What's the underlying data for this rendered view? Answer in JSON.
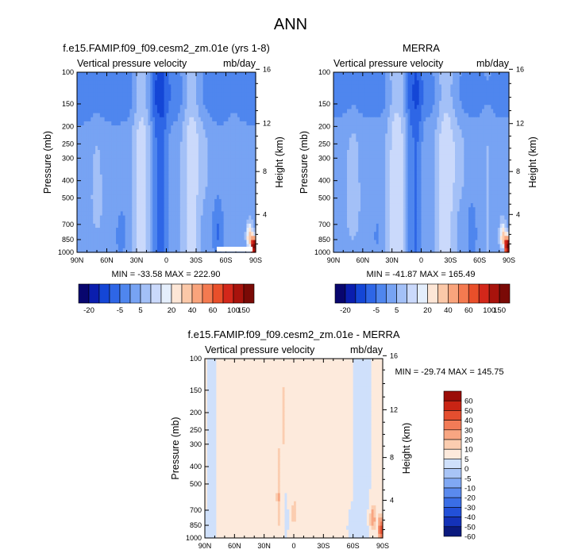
{
  "figure_title": "ANN",
  "colors": {
    "abs_palette": [
      "#08066e",
      "#0a1eae",
      "#1446d6",
      "#2e66e6",
      "#4f86ee",
      "#77a3f3",
      "#a3c0f7",
      "#cad9fb",
      "#e4eefc",
      "#fde6d6",
      "#fbc8a8",
      "#f9a47c",
      "#f47a50",
      "#e94f2a",
      "#d3271a",
      "#a8130c",
      "#7a0a06"
    ],
    "diff_palette": [
      "#0b1a7e",
      "#1432b8",
      "#2250d8",
      "#3a6ee6",
      "#5a8aee",
      "#80a8f3",
      "#a8c4f6",
      "#cfe0fb",
      "#fdeadc",
      "#fbcdb0",
      "#f8a682",
      "#f27b57",
      "#e44e2f",
      "#c92414",
      "#9b0d08"
    ]
  },
  "chart_data": [
    {
      "type": "heatmap",
      "title": "f.e15.FAMIP.f09_f09.cesm2_zm.01e (yrs 1-8)",
      "left_label": "Vertical pressure velocity",
      "right_label": "mb/day",
      "xlabel": "",
      "ylabel": "Pressure (mb)",
      "y2label": "Height (km)",
      "xticks": [
        "90N",
        "60N",
        "30N",
        "0",
        "30S",
        "60S",
        "90S"
      ],
      "yticks": [
        100,
        150,
        200,
        250,
        300,
        400,
        500,
        700,
        850,
        1000
      ],
      "y2ticks": [
        4,
        8,
        12,
        16
      ],
      "stats": "MIN = -33.58  MAX = 222.90",
      "colorbar_labels": [
        "-20",
        "-5",
        "5",
        "20",
        "40",
        "60",
        "100",
        "150"
      ]
    },
    {
      "type": "heatmap",
      "title": "MERRA",
      "left_label": "Vertical pressure velocity",
      "right_label": "mb/day",
      "xlabel": "",
      "ylabel": "Pressure (mb)",
      "y2label": "Height (km)",
      "xticks": [
        "90N",
        "60N",
        "30N",
        "0",
        "30S",
        "60S",
        "90S"
      ],
      "yticks": [
        100,
        150,
        200,
        250,
        300,
        400,
        500,
        700,
        850,
        1000
      ],
      "y2ticks": [
        4,
        8,
        12,
        16
      ],
      "stats": "MIN = -41.87  MAX = 165.49",
      "colorbar_labels": [
        "-20",
        "-5",
        "5",
        "20",
        "40",
        "60",
        "100",
        "150"
      ]
    },
    {
      "type": "heatmap",
      "title": "f.e15.FAMIP.f09_f09.cesm2_zm.01e - MERRA",
      "left_label": "Vertical pressure velocity",
      "right_label": "mb/day",
      "xlabel": "",
      "ylabel": "Pressure (mb)",
      "y2label": "Height (km)",
      "xticks": [
        "90N",
        "60N",
        "30N",
        "0",
        "30S",
        "60S",
        "90S"
      ],
      "yticks": [
        100,
        150,
        200,
        250,
        300,
        400,
        500,
        700,
        850,
        1000
      ],
      "y2ticks": [
        4,
        8,
        12,
        16
      ],
      "stats": "MIN = -29.74  MAX = 145.75",
      "colorbar_labels": [
        "60",
        "50",
        "40",
        "30",
        "20",
        "10",
        "5",
        "0",
        "-5",
        "-10",
        "-20",
        "-30",
        "-40",
        "-50",
        "-60"
      ]
    }
  ]
}
